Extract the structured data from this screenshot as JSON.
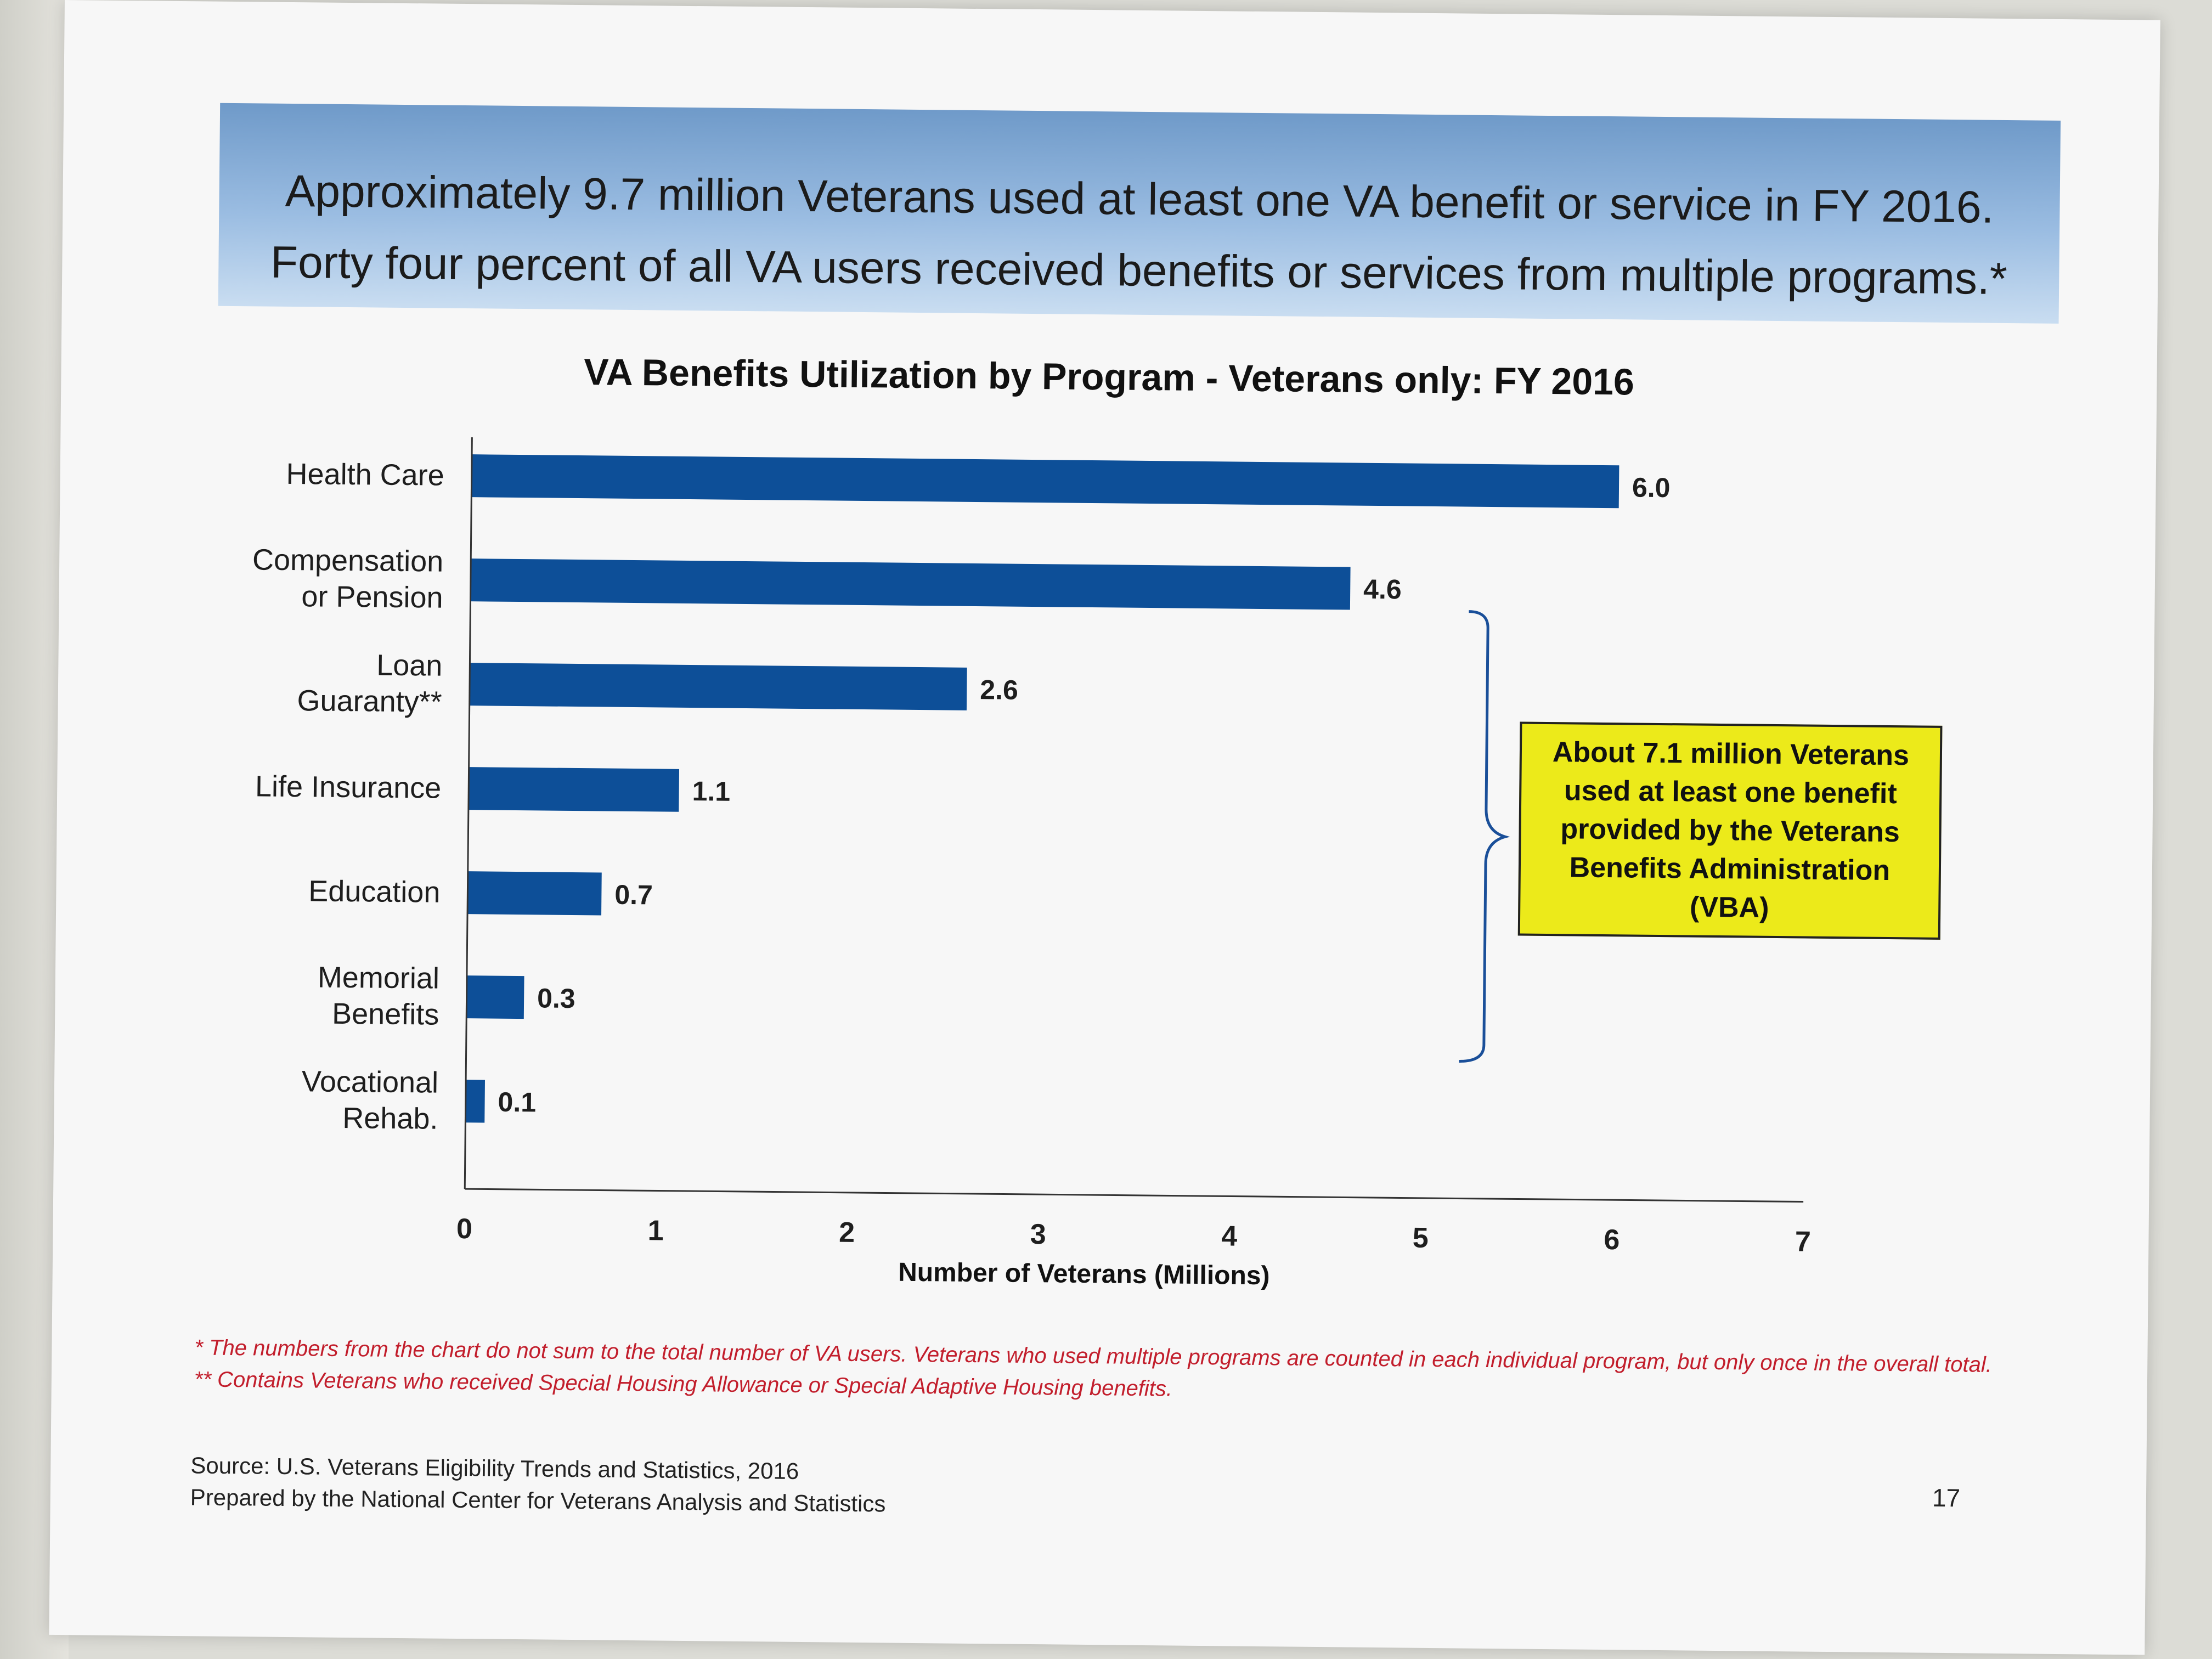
{
  "banner": {
    "line1": "Approximately 9.7 million Veterans used at least one VA benefit or service in FY 2016.",
    "line2": "Forty four percent of all VA users received benefits or services from multiple programs.*"
  },
  "chart_data": {
    "type": "bar",
    "orientation": "horizontal",
    "title": "VA Benefits Utilization by Program - Veterans only: FY 2016",
    "categories": [
      [
        "Health Care"
      ],
      [
        "Compensation",
        "or Pension"
      ],
      [
        "Loan",
        "Guaranty**"
      ],
      [
        "Life Insurance"
      ],
      [
        "Education"
      ],
      [
        "Memorial",
        "Benefits"
      ],
      [
        "Vocational",
        "Rehab."
      ]
    ],
    "values": [
      6.0,
      4.6,
      2.6,
      1.1,
      0.7,
      0.3,
      0.1
    ],
    "value_labels": [
      "6.0",
      "4.6",
      "2.6",
      "1.1",
      "0.7",
      "0.3",
      "0.1"
    ],
    "xlabel": "Number of Veterans (Millions)",
    "xlim": [
      0,
      7
    ],
    "xticks": [
      0,
      1,
      2,
      3,
      4,
      5,
      6,
      7
    ],
    "grid": false,
    "bar_color": "#0d4f98",
    "annotation": "About 7.1 million Veterans used at least one benefit provided by the Veterans Benefits Administration (VBA)",
    "annotation_color": "#ecea1a"
  },
  "footnote": "* The numbers from the chart do not sum to the total number of VA users. Veterans who used multiple programs are counted in each individual program, but only once in the overall total.  ** Contains Veterans who received Special Housing Allowance or Special Adaptive Housing benefits.",
  "source": {
    "line1": "Source: U.S. Veterans Eligibility Trends and Statistics, 2016",
    "line2": "Prepared by the National Center for Veterans Analysis and Statistics"
  },
  "page_number": "17"
}
